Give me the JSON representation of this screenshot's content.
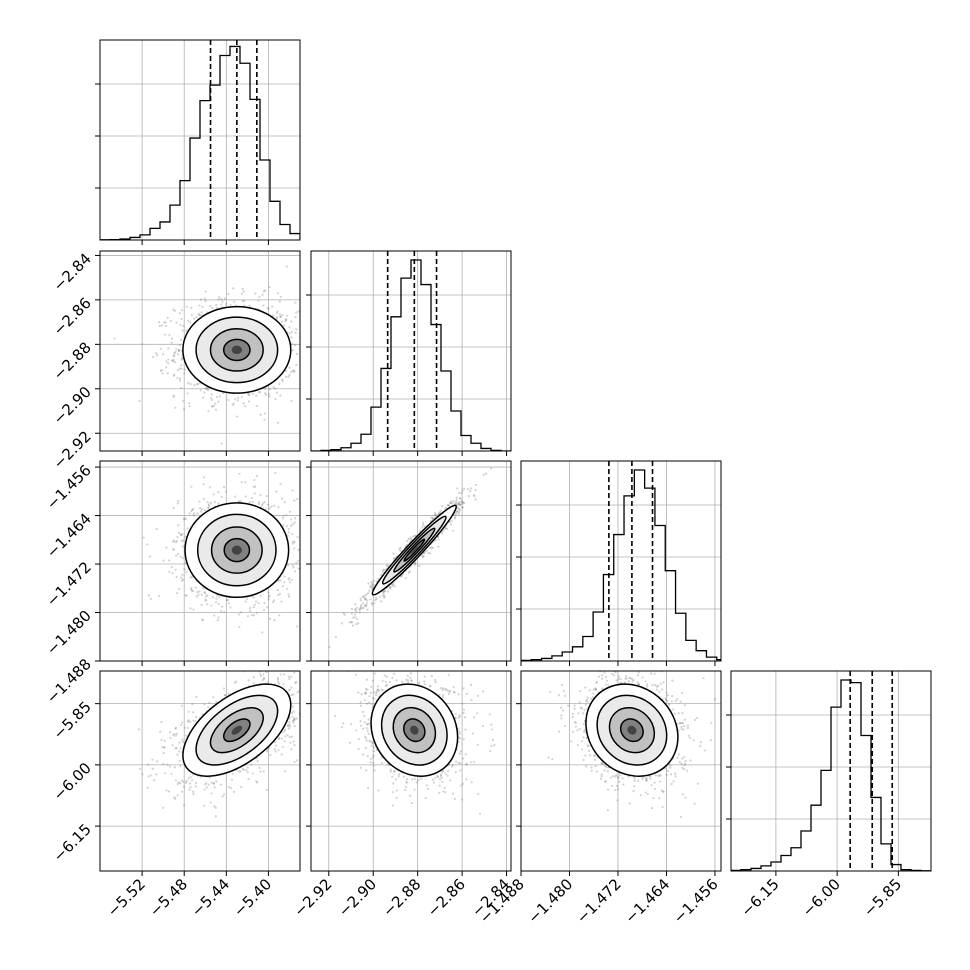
{
  "chart_data": {
    "type": "corner",
    "grid": true,
    "colors": {
      "hist": "#000000",
      "contour": "#000000",
      "points": "#7f7f7f",
      "grid": "#b0b0b0",
      "quantile": "#000000"
    },
    "parameters": [
      {
        "range": [
          -5.56,
          -5.37
        ],
        "ticks": [
          "−5.52",
          "−5.48",
          "−5.44",
          "−5.40"
        ],
        "tick_values": [
          -5.52,
          -5.48,
          -5.44,
          -5.4
        ],
        "quantiles": [
          -5.455,
          -5.43,
          -5.411
        ],
        "hist": {
          "edges_start": -5.56,
          "bin_width": 0.0095,
          "counts": [
            0.2,
            0.3,
            0.8,
            2,
            4,
            9,
            14,
            27,
            46,
            79,
            108,
            120,
            143,
            150,
            137,
            109,
            62,
            30,
            12,
            5,
            1,
            0
          ]
        },
        "hist_ylim": [
          0,
          155
        ]
      },
      {
        "range": [
          -2.928,
          -2.838
        ],
        "ticks": [
          "−2.92",
          "−2.90",
          "−2.88",
          "−2.86",
          "−2.84"
        ],
        "tick_values": [
          -2.92,
          -2.9,
          -2.88,
          -2.86,
          -2.84
        ],
        "quantiles": [
          -2.8935,
          -2.8815,
          -2.8715
        ],
        "hist": {
          "edges_start": -2.928,
          "bin_width": 0.0045,
          "counts": [
            0,
            0.5,
            1,
            2.5,
            6,
            13,
            34,
            64,
            104,
            134,
            148,
            129,
            98,
            62,
            31,
            12,
            6,
            2,
            0.5,
            0
          ]
        },
        "hist_ylim": [
          0,
          155
        ]
      },
      {
        "range": [
          -1.488,
          -1.455
        ],
        "ticks": [
          "−1.488",
          "−1.480",
          "−1.472",
          "−1.464",
          "−1.456"
        ],
        "tick_values": [
          -1.488,
          -1.48,
          -1.472,
          -1.464,
          -1.456
        ],
        "quantiles": [
          -1.4735,
          -1.4697,
          -1.4663
        ],
        "hist": {
          "edges_start": -1.488,
          "bin_width": 0.0017,
          "counts": [
            0.5,
            1,
            2,
            4,
            7,
            11,
            19,
            38,
            67,
            98,
            128,
            148,
            134,
            105,
            70,
            37,
            16,
            8,
            3,
            1
          ]
        },
        "hist_ylim": [
          0,
          155
        ]
      },
      {
        "range": [
          -6.26,
          -5.77
        ],
        "ticks": [
          "−6.15",
          "−6.00",
          "−5.85"
        ],
        "tick_values": [
          -6.15,
          -6.0,
          -5.85
        ],
        "quantiles": [
          -5.968,
          -5.914,
          -5.865
        ],
        "hist": {
          "edges_start": -6.26,
          "bin_width": 0.0245,
          "counts": [
            0.5,
            1,
            2,
            4,
            7,
            12,
            18,
            31,
            51,
            78,
            127,
            148,
            146,
            105,
            57,
            21,
            5,
            1,
            0.5,
            0.2
          ]
        },
        "hist_ylim": [
          0,
          155
        ]
      }
    ],
    "pairs": [
      {
        "x": 0,
        "y": 1,
        "center": [
          -5.43,
          -2.8825
        ],
        "sd": [
          0.025,
          0.0095
        ],
        "rho": 0.0,
        "fill": "#3c3c3c",
        "contour_levels": [
          0.2,
          0.5,
          1.0,
          1.55,
          2.05
        ]
      },
      {
        "x": 0,
        "y": 2,
        "center": [
          -5.43,
          -1.4697
        ],
        "sd": [
          0.024,
          0.0038
        ],
        "rho": 0.0,
        "fill": "#3c3c3c",
        "contour_levels": [
          0.2,
          0.5,
          1.0,
          1.55,
          2.05
        ]
      },
      {
        "x": 1,
        "y": 2,
        "center": [
          -2.8815,
          -1.4697
        ],
        "sd": [
          0.0092,
          0.0036
        ],
        "rho": 0.97,
        "fill": "#3c3c3c",
        "contour_levels": [
          0.2,
          0.5,
          1.0,
          1.55,
          2.05
        ]
      },
      {
        "x": 0,
        "y": 3,
        "center": [
          -5.43,
          -5.915
        ],
        "sd": [
          0.025,
          0.055
        ],
        "rho": 0.55,
        "fill": "#3c3c3c",
        "contour_levels": [
          0.2,
          0.5,
          1.0,
          1.55,
          2.05
        ]
      },
      {
        "x": 1,
        "y": 3,
        "center": [
          -2.8815,
          -5.915
        ],
        "sd": [
          0.0095,
          0.055
        ],
        "rho": -0.15,
        "fill": "#3c3c3c",
        "contour_levels": [
          0.2,
          0.5,
          1.0,
          1.55,
          2.05
        ]
      },
      {
        "x": 2,
        "y": 3,
        "center": [
          -1.4697,
          -5.915
        ],
        "sd": [
          0.0037,
          0.055
        ],
        "rho": -0.15,
        "fill": "#3c3c3c",
        "contour_levels": [
          0.2,
          0.5,
          1.0,
          1.55,
          2.05
        ]
      }
    ]
  }
}
